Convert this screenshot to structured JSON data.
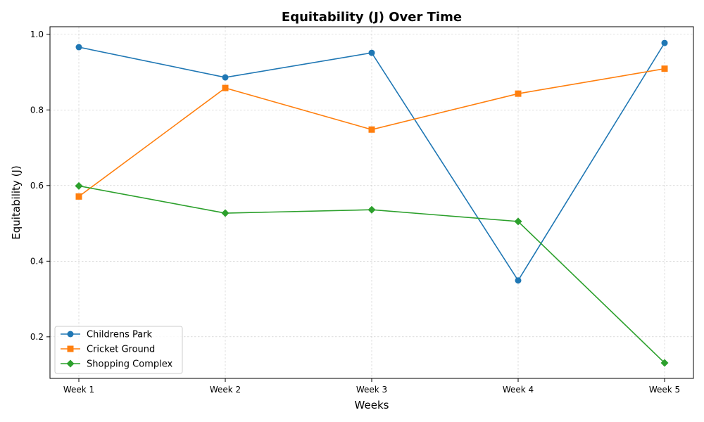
{
  "chart_data": {
    "type": "line",
    "title": "Equitability (J) Over Time",
    "xlabel": "Weeks",
    "ylabel": "Equitability (J)",
    "categories": [
      "Week 1",
      "Week 2",
      "Week 3",
      "Week 4",
      "Week 5"
    ],
    "ylim": [
      0.09,
      1.02
    ],
    "yticks": [
      0.2,
      0.4,
      0.6,
      0.8,
      1.0
    ],
    "ytick_labels": [
      "0.2",
      "0.4",
      "0.6",
      "0.8",
      "1.0"
    ],
    "grid": true,
    "legend_position": "lower-left",
    "series": [
      {
        "name": "Childrens Park",
        "color": "#1f77b4",
        "marker": "circle",
        "values": [
          0.966,
          0.886,
          0.951,
          0.349,
          0.977
        ]
      },
      {
        "name": "Cricket Ground",
        "color": "#ff7f0e",
        "marker": "square",
        "values": [
          0.571,
          0.858,
          0.748,
          0.843,
          0.909
        ]
      },
      {
        "name": "Shopping Complex",
        "color": "#2ca02c",
        "marker": "diamond",
        "values": [
          0.599,
          0.527,
          0.536,
          0.505,
          0.131
        ]
      }
    ]
  }
}
